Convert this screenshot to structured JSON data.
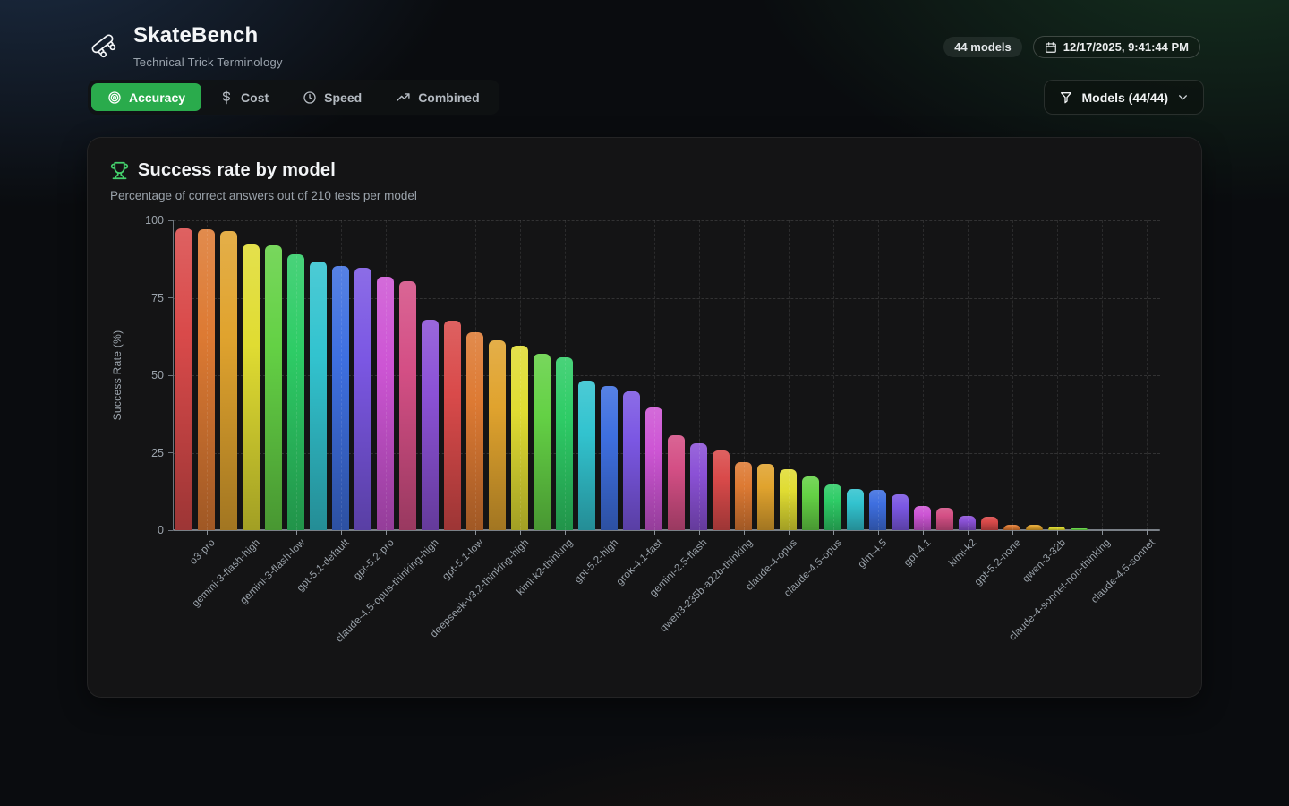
{
  "app": {
    "title": "SkateBench",
    "subtitle": "Technical Trick Terminology"
  },
  "header": {
    "models_badge": "44 models",
    "timestamp": "12/17/2025, 9:41:44 PM",
    "filter_button_label": "Models (44/44)"
  },
  "tabs": [
    {
      "label": "Accuracy",
      "icon": "target-icon",
      "active": true
    },
    {
      "label": "Cost",
      "icon": "dollar-icon",
      "active": false
    },
    {
      "label": "Speed",
      "icon": "clock-icon",
      "active": false
    },
    {
      "label": "Combined",
      "icon": "trending-up-icon",
      "active": false
    }
  ],
  "card": {
    "title": "Success rate by model",
    "subtitle": "Percentage of correct answers out of 210 tests per model"
  },
  "chart_data": {
    "type": "bar",
    "title": "Success rate by model",
    "xlabel": "",
    "ylabel": "Success Rate (%)",
    "ylim": [
      0,
      100
    ],
    "yticks": [
      0,
      25,
      50,
      75,
      100
    ],
    "grid": true,
    "legend": false,
    "x_tick_rotation": -45,
    "note": "44 bars sorted descending; x-axis ticks/labels appear under every 2nd bar only; colors cycle through a 12-hue rainbow",
    "palette_cycle": [
      "#d94a4a",
      "#dd7a33",
      "#e0a32e",
      "#e0dc32",
      "#64d145",
      "#2ecc66",
      "#32c3cf",
      "#3e6fe0",
      "#7b57e3",
      "#cd55d4",
      "#d44f85",
      "#8b51d6"
    ],
    "bars": [
      {
        "label": "",
        "value": 97.4
      },
      {
        "label": "o3-pro",
        "value": 97.1
      },
      {
        "label": "",
        "value": 96.6
      },
      {
        "label": "gemini-3-flash-high",
        "value": 92.3
      },
      {
        "label": "",
        "value": 92.0
      },
      {
        "label": "gemini-3-flash-low",
        "value": 89.0
      },
      {
        "label": "",
        "value": 86.6
      },
      {
        "label": "gpt-5.1-default",
        "value": 85.2
      },
      {
        "label": "",
        "value": 84.8
      },
      {
        "label": "gpt-5.2-pro",
        "value": 81.9
      },
      {
        "label": "",
        "value": 80.4
      },
      {
        "label": "claude-4.5-opus-thinking-high",
        "value": 67.9
      },
      {
        "label": "",
        "value": 67.5
      },
      {
        "label": "gpt-5.1-low",
        "value": 63.8
      },
      {
        "label": "",
        "value": 61.3
      },
      {
        "label": "deepseek-v3.2-thinking-high",
        "value": 59.4
      },
      {
        "label": "",
        "value": 56.8
      },
      {
        "label": "kimi-k2-thinking",
        "value": 55.8
      },
      {
        "label": "",
        "value": 48.3
      },
      {
        "label": "gpt-5.2-high",
        "value": 46.4
      },
      {
        "label": "",
        "value": 44.7
      },
      {
        "label": "grok-4.1-fast",
        "value": 39.5
      },
      {
        "label": "",
        "value": 30.7
      },
      {
        "label": "gemini-2.5-flash",
        "value": 28.1
      },
      {
        "label": "",
        "value": 25.7
      },
      {
        "label": "qwen3-235b-a22b-thinking",
        "value": 22.0
      },
      {
        "label": "",
        "value": 21.5
      },
      {
        "label": "claude-4-opus",
        "value": 19.6
      },
      {
        "label": "",
        "value": 17.3
      },
      {
        "label": "claude-4.5-opus",
        "value": 14.6
      },
      {
        "label": "",
        "value": 13.2
      },
      {
        "label": "glm-4.5",
        "value": 12.9
      },
      {
        "label": "",
        "value": 11.7
      },
      {
        "label": "gpt-4.1",
        "value": 7.7
      },
      {
        "label": "",
        "value": 7.3
      },
      {
        "label": "kimi-k2",
        "value": 4.5
      },
      {
        "label": "",
        "value": 4.3
      },
      {
        "label": "gpt-5.2-none",
        "value": 1.8
      },
      {
        "label": "",
        "value": 1.8
      },
      {
        "label": "qwen-3-32b",
        "value": 1.2
      },
      {
        "label": "",
        "value": 0.6
      },
      {
        "label": "claude-4-sonnet-non-thinking",
        "value": 0
      },
      {
        "label": "",
        "value": 0
      },
      {
        "label": "claude-4.5-sonnet",
        "value": 0
      }
    ]
  }
}
